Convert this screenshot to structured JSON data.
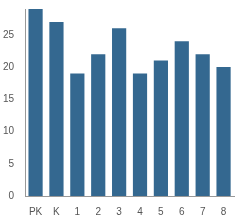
{
  "chart_data": {
    "type": "bar",
    "categories": [
      "PK",
      "K",
      "1",
      "2",
      "3",
      "4",
      "5",
      "6",
      "7",
      "8"
    ],
    "values": [
      29,
      27,
      19,
      22,
      26,
      19,
      21,
      24,
      22,
      20
    ],
    "color": "#346890",
    "ylim": [
      0,
      29
    ],
    "yticks": [
      0,
      5,
      10,
      15,
      20,
      25
    ],
    "grid": false
  }
}
